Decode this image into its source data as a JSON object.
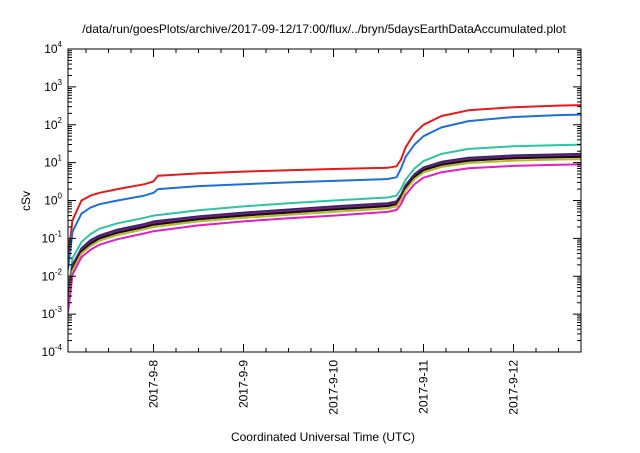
{
  "chart_data": {
    "type": "line",
    "title": "/data/run/goesPlots/archive/2017-09-12/17:00/flux/../bryn/5daysEarthDataAccumulated.plot",
    "xlabel": "Coordinated Universal Time (UTC)",
    "ylabel": "cSv",
    "yscale": "log",
    "ylim": [
      0.0001,
      10000
    ],
    "xlim": [
      7.05,
      12.75
    ],
    "grid": false,
    "legend": "none",
    "x_ticks": [
      {
        "value": 8,
        "label": "2017-9-8"
      },
      {
        "value": 9,
        "label": "2017-9-9"
      },
      {
        "value": 10,
        "label": "2017-9-10"
      },
      {
        "value": 11,
        "label": "2017-9-11"
      },
      {
        "value": 12,
        "label": "2017-9-12"
      }
    ],
    "y_ticks": [
      {
        "value": 0.0001,
        "base": "10",
        "exp": "-4"
      },
      {
        "value": 0.001,
        "base": "10",
        "exp": "-3"
      },
      {
        "value": 0.01,
        "base": "10",
        "exp": "-2"
      },
      {
        "value": 0.1,
        "base": "10",
        "exp": "-1"
      },
      {
        "value": 1,
        "base": "10",
        "exp": "0"
      },
      {
        "value": 10,
        "base": "10",
        "exp": "1"
      },
      {
        "value": 100,
        "base": "10",
        "exp": "2"
      },
      {
        "value": 1000,
        "base": "10",
        "exp": "3"
      },
      {
        "value": 10000,
        "base": "10",
        "exp": "4"
      }
    ],
    "series": [
      {
        "color": "#e41a1c",
        "x": [
          7.05,
          7.1,
          7.2,
          7.3,
          7.4,
          7.6,
          7.9,
          8.0,
          8.05,
          8.5,
          9.0,
          9.5,
          10.0,
          10.6,
          10.7,
          10.75,
          10.8,
          10.9,
          11.0,
          11.2,
          11.5,
          12.0,
          12.5,
          12.75
        ],
        "y": [
          0.03,
          0.3,
          1.0,
          1.35,
          1.6,
          2.0,
          2.7,
          3.2,
          4.5,
          5.2,
          5.8,
          6.3,
          6.8,
          7.3,
          8.0,
          12,
          25,
          60,
          100,
          170,
          240,
          290,
          320,
          330
        ]
      },
      {
        "color": "#1f6fd6",
        "x": [
          7.05,
          7.1,
          7.2,
          7.3,
          7.4,
          7.6,
          7.9,
          8.0,
          8.05,
          8.5,
          9.0,
          9.5,
          10.0,
          10.6,
          10.7,
          10.75,
          10.8,
          10.9,
          11.0,
          11.2,
          11.5,
          12.0,
          12.5,
          12.75
        ],
        "y": [
          0.015,
          0.15,
          0.45,
          0.65,
          0.8,
          1.0,
          1.35,
          1.6,
          2.0,
          2.4,
          2.7,
          3.0,
          3.3,
          3.7,
          4.1,
          7,
          14,
          30,
          50,
          85,
          125,
          160,
          180,
          185
        ]
      },
      {
        "color": "#2ec4a0",
        "x": [
          7.05,
          7.1,
          7.2,
          7.3,
          7.4,
          7.6,
          7.9,
          8.0,
          8.5,
          9.0,
          9.5,
          10.0,
          10.6,
          10.7,
          10.75,
          10.8,
          10.9,
          11.0,
          11.2,
          11.5,
          12.0,
          12.5,
          12.75
        ],
        "y": [
          0.003,
          0.03,
          0.08,
          0.13,
          0.18,
          0.25,
          0.35,
          0.4,
          0.55,
          0.7,
          0.85,
          1.0,
          1.2,
          1.35,
          2.0,
          3.5,
          7,
          11,
          17,
          23,
          27,
          29,
          30
        ]
      },
      {
        "color": "#2b2b6b",
        "x": [
          7.05,
          7.1,
          7.2,
          7.3,
          7.4,
          7.6,
          7.9,
          8.0,
          8.5,
          9.0,
          9.5,
          10.0,
          10.6,
          10.7,
          10.75,
          10.8,
          10.9,
          11.0,
          11.2,
          11.5,
          12.0,
          12.5,
          12.75
        ],
        "y": [
          0.002,
          0.02,
          0.055,
          0.09,
          0.12,
          0.17,
          0.24,
          0.28,
          0.38,
          0.48,
          0.58,
          0.7,
          0.85,
          0.95,
          1.4,
          2.5,
          5,
          7.5,
          10.5,
          13.5,
          15.5,
          16.5,
          17
        ]
      },
      {
        "color": "#7a1a7a",
        "x": [
          7.05,
          7.1,
          7.2,
          7.3,
          7.4,
          7.6,
          7.9,
          8.0,
          8.5,
          9.0,
          9.5,
          10.0,
          10.6,
          10.7,
          10.75,
          10.8,
          10.9,
          11.0,
          11.2,
          11.5,
          12.0,
          12.5,
          12.75
        ],
        "y": [
          0.0018,
          0.018,
          0.05,
          0.08,
          0.11,
          0.155,
          0.22,
          0.255,
          0.35,
          0.44,
          0.53,
          0.64,
          0.78,
          0.88,
          1.3,
          2.3,
          4.6,
          6.9,
          9.6,
          12.3,
          14.2,
          15.2,
          15.5
        ]
      },
      {
        "color": "#111111",
        "x": [
          7.05,
          7.1,
          7.2,
          7.3,
          7.4,
          7.6,
          7.9,
          8.0,
          8.5,
          9.0,
          9.5,
          10.0,
          10.6,
          10.7,
          10.75,
          10.8,
          10.9,
          11.0,
          11.2,
          11.5,
          12.0,
          12.5,
          12.75
        ],
        "y": [
          0.0016,
          0.016,
          0.045,
          0.072,
          0.1,
          0.14,
          0.2,
          0.23,
          0.32,
          0.4,
          0.48,
          0.58,
          0.71,
          0.8,
          1.2,
          2.1,
          4.2,
          6.3,
          8.8,
          11.2,
          13.0,
          13.9,
          14.2
        ]
      },
      {
        "color": "#b8b82a",
        "x": [
          7.05,
          7.1,
          7.2,
          7.3,
          7.4,
          7.6,
          7.9,
          8.0,
          8.5,
          9.0,
          9.5,
          10.0,
          10.6,
          10.7,
          10.75,
          10.8,
          10.9,
          11.0,
          11.2,
          11.5,
          12.0,
          12.5,
          12.75
        ],
        "y": [
          0.0014,
          0.014,
          0.04,
          0.063,
          0.087,
          0.122,
          0.175,
          0.2,
          0.28,
          0.35,
          0.42,
          0.5,
          0.62,
          0.7,
          1.05,
          1.85,
          3.7,
          5.5,
          7.7,
          9.8,
          11.3,
          12.1,
          12.4
        ]
      },
      {
        "color": "#e020c0",
        "x": [
          7.05,
          7.1,
          7.2,
          7.3,
          7.4,
          7.6,
          7.9,
          8.0,
          8.5,
          9.0,
          9.5,
          10.0,
          10.6,
          10.7,
          10.75,
          10.8,
          10.9,
          11.0,
          11.2,
          11.5,
          12.0,
          12.5,
          12.75
        ],
        "y": [
          0.0011,
          0.011,
          0.032,
          0.05,
          0.068,
          0.095,
          0.135,
          0.155,
          0.22,
          0.28,
          0.34,
          0.4,
          0.5,
          0.56,
          0.8,
          1.4,
          2.7,
          4.0,
          5.6,
          7.1,
          8.2,
          8.8,
          9.0
        ]
      }
    ]
  }
}
